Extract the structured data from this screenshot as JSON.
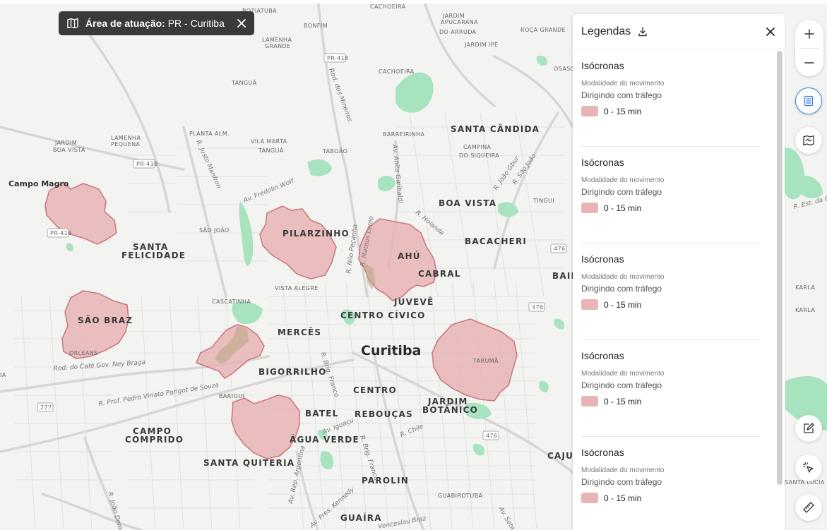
{
  "area_chip": {
    "label_bold": "Área de atuação:",
    "label_value": " PR - Curitiba"
  },
  "legend": {
    "title": "Legendas",
    "items": [
      {
        "title": "Isócronas",
        "subtitle": "Modalidade do movimento",
        "mode": "Dirigindo com tráfego",
        "range": "0 - 15 min"
      },
      {
        "title": "Isócronas",
        "subtitle": "Modalidade do movimento",
        "mode": "Dirigindo com tráfego",
        "range": "0 - 15 min"
      },
      {
        "title": "Isócronas",
        "subtitle": "Modalidade do movimento",
        "mode": "Dirigindo com tráfego",
        "range": "0 - 15 min"
      },
      {
        "title": "Isócronas",
        "subtitle": "Modalidade do movimento",
        "mode": "Dirigindo com tráfego",
        "range": "0 - 15 min"
      },
      {
        "title": "Isócronas",
        "subtitle": "Modalidade do movimento",
        "mode": "Dirigindo com tráfego",
        "range": "0 - 15 min"
      }
    ]
  },
  "colors": {
    "isochrone_fill": "#e8b4b6",
    "isochrone_stroke": "#c97a80",
    "park": "#9fe0b8",
    "chip_bg": "#3a3a3a",
    "accent": "#2f7de1"
  },
  "map_labels": {
    "city": "Curitiba",
    "campo_magro": "Campo Magro",
    "pilarzinho": "PILARZINHO",
    "ahu": "AHÚ",
    "cabral": "CABRAL",
    "juveve": "JUVEVÊ",
    "centro_civico": "CENTRO CÍVICO",
    "merces": "MERCÊS",
    "bigorrilho": "BIGORRILHO",
    "centro": "CENTRO",
    "batel": "BATEL",
    "reboucas": "REBOUÇAS",
    "agua_verde": "ÁGUA VERDE",
    "santa_quiteria": "SANTA QUITERIA",
    "parolin": "PAROLIN",
    "guaira": "GUAÍRA",
    "campo_comprido_1": "CAMPO",
    "campo_comprido_2": "COMPRIDO",
    "santa_felicidade_1": "SANTA",
    "santa_felicidade_2": "FELICIDADE",
    "sao_braz": "SÃO BRAZ",
    "orleans": "ORLEANS",
    "boa_vista": "BOA VISTA",
    "bacacheri": "BACACHERI",
    "santa_candida": "SANTA CÂNDIDA",
    "jardim_botanico_1": "JARDIM",
    "jardim_botanico_2": "BOTÂNICO",
    "taruma": "TARUMÃ",
    "vista_alegre": "VISTA ALEGRE",
    "cascatinha": "CASCATINHA",
    "sao_joao": "SÃO JOÃO",
    "lamenha_pequena_1": "LAMENHA",
    "lamenha_pequena_2": "PEQUENA",
    "jardim_boa_vista_1": "JARDIM",
    "jardim_boa_vista_2": "BOA VISTA",
    "planta_alm": "PLANTA ALM.",
    "vila_marta_tangua_1": "VILA MARTA",
    "vila_marta_tangua_2": "TANGUÁ",
    "taboao": "TABOÃO",
    "tangua": "TANGUÁ",
    "lamenha_grande_1": "LAMENHA",
    "lamenha_grande_2": "GRANDE",
    "bonfim": "BONFIM",
    "botiatuba": "BOTIATUBA",
    "cachoeira_top": "CACHOEIRA",
    "cachoeira": "CACHOEIRA",
    "jardim_apucarana_1": "JARDIM",
    "jardim_apucarana_2": "APUCARANA",
    "jardim_apucarana_3": "DO ARRUDA",
    "jardim_ipe": "JARDIM IPÊ",
    "roca_grande": "ROÇA GRANDE",
    "barreirinha": "BARREIRINHA",
    "campina_1": "CAMPINA",
    "campina_2": "DO SIQUEIRA",
    "tingui": "TINGUI",
    "bairro": "BAIR",
    "barigui": "BARIGUI",
    "guabirotuba": "GUABIROTUBA",
    "cajuru": "CAJU",
    "santa_lucia": "SANTA LUCIA",
    "karla_1": "KARLA",
    "karla_2": "KARLA",
    "osasco": "OSASCO",
    "ra": "RA",
    "rod_cafe": "Rod. do Café Gov. Ney Braga",
    "r_prof_pedro": "R. Prof. Pedro Viriato Parigot de Souza",
    "av_iguacu": "Av. Iguaçu",
    "r_chile": "R. Chile",
    "r_brig_franco": "R. Brig. Franco",
    "av_frederico": "Av. Fredolin Wolf",
    "r_holanda": "R. Holanda",
    "rod_mineiros": "Rod. dos Mineiros",
    "r_nilo": "R. Nilo Peçanha",
    "av_anita": "Av. Anita Garibaldi",
    "r_joao_gbur": "R. João Gbur",
    "r_sao_joao": "R. São João",
    "r_justo": "R. Justo Manfron",
    "av_mateus": "R. Mateus Leme",
    "r_est_da": "R. Est. da Gr",
    "av_rep_arg": "Av. Rep. Argentina",
    "r_joao_dembi": "R. João Dembi",
    "av_pres_kennedy": "Av. Pres. Kennedy",
    "r_venceslau": "Venceslau Braz",
    "r_brig_franco_2": "R. Brig. Franco",
    "av_sete": "Av. Sete",
    "pr418_a": "PR-418",
    "pr418_b": "PR-418",
    "pr418_c": "PR-418",
    "shield_476_a": "476",
    "shield_476_b": "476",
    "shield_476_c": "476",
    "shield_277": "277",
    "ia": "IA"
  }
}
